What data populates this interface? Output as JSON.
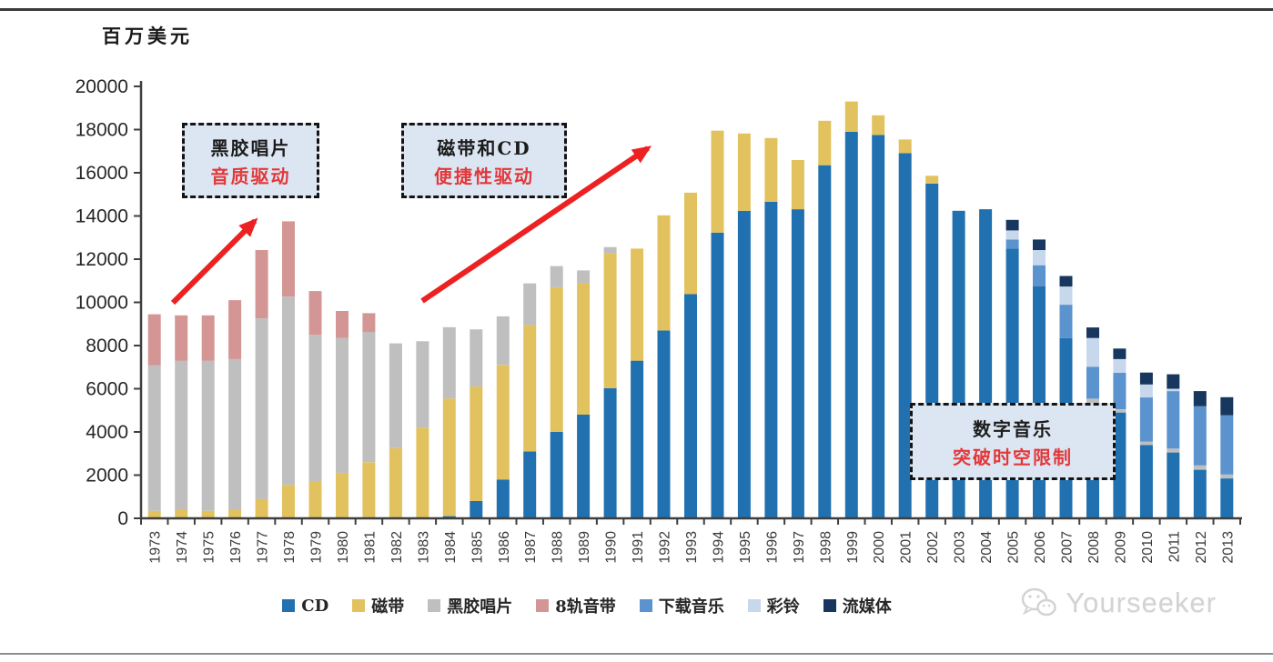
{
  "unit_label": "百万美元",
  "watermark": "Yourseeker",
  "annotations": [
    {
      "title": "黑胶唱片",
      "subtitle": "音质驱动"
    },
    {
      "title": "磁带和CD",
      "subtitle": "便捷性驱动"
    },
    {
      "title": "数字音乐",
      "subtitle": "突破时空限制"
    }
  ],
  "colors": {
    "cd": "#2171b0",
    "cassette": "#e2c25e",
    "vinyl": "#bfbfbf",
    "eight_track": "#d49694",
    "download": "#5b93ce",
    "ringtone": "#c7d7ec",
    "streaming": "#17375e",
    "arrow_red": "#ec2222",
    "annotation_bg": "#dce6f2",
    "axis": "#3f3f3f"
  },
  "chart_data": {
    "type": "bar",
    "stacked": true,
    "title": "",
    "xlabel": "",
    "ylabel": "百万美元",
    "ylim": [
      0,
      20000
    ],
    "ytick_interval": 2000,
    "ytick_labels": [
      "0",
      "2000",
      "4000",
      "6000",
      "8000",
      "10000",
      "12000",
      "14000",
      "16000",
      "18000",
      "20000"
    ],
    "grid": false,
    "legend_position": "bottom",
    "categories": [
      1973,
      1974,
      1975,
      1976,
      1977,
      1978,
      1979,
      1980,
      1981,
      1982,
      1983,
      1984,
      1985,
      1986,
      1987,
      1988,
      1989,
      1990,
      1991,
      1992,
      1993,
      1994,
      1995,
      1996,
      1997,
      1998,
      1999,
      2000,
      2001,
      2002,
      2003,
      2004,
      2005,
      2006,
      2007,
      2008,
      2009,
      2010,
      2011,
      2012,
      2013
    ],
    "series": [
      {
        "name": "CD",
        "color": "#2171b0",
        "values": [
          0,
          0,
          0,
          0,
          0,
          0,
          0,
          0,
          0,
          0,
          0,
          100,
          800,
          1800,
          3100,
          4000,
          4800,
          6030,
          7300,
          8700,
          10380,
          13230,
          14240,
          14660,
          14310,
          16350,
          17900,
          17750,
          16910,
          15500,
          14240,
          14310,
          12490,
          10740,
          8350,
          5330,
          4900,
          3400,
          3050,
          2250,
          1850
        ]
      },
      {
        "name": "磁带",
        "color": "#e2c25e",
        "values": [
          350,
          400,
          350,
          400,
          900,
          1550,
          1700,
          2100,
          2600,
          3250,
          4200,
          5450,
          5300,
          5300,
          5850,
          6700,
          6100,
          6250,
          5190,
          5330,
          4700,
          4720,
          3580,
          2950,
          2280,
          2060,
          1400,
          910,
          630,
          360,
          0,
          0,
          0,
          0,
          0,
          0,
          0,
          0,
          0,
          0,
          0
        ]
      },
      {
        "name": "黑胶唱片",
        "color": "#bfbfbf",
        "values": [
          6740,
          6900,
          6950,
          6970,
          8360,
          8720,
          6790,
          6250,
          6030,
          4850,
          4000,
          3300,
          2650,
          2250,
          1930,
          980,
          580,
          280,
          0,
          0,
          0,
          0,
          0,
          0,
          0,
          0,
          0,
          0,
          0,
          0,
          0,
          0,
          0,
          0,
          0,
          210,
          150,
          150,
          180,
          200,
          180
        ]
      },
      {
        "name": "8轨音带",
        "color": "#d49694",
        "values": [
          2360,
          2100,
          2100,
          2730,
          3160,
          3480,
          2030,
          1250,
          870,
          0,
          0,
          0,
          0,
          0,
          0,
          0,
          0,
          0,
          0,
          0,
          0,
          0,
          0,
          0,
          0,
          0,
          0,
          0,
          0,
          0,
          0,
          0,
          0,
          0,
          0,
          0,
          0,
          0,
          0,
          0,
          0
        ]
      },
      {
        "name": "下载音乐",
        "color": "#5b93ce",
        "values": [
          0,
          0,
          0,
          0,
          0,
          0,
          0,
          0,
          0,
          0,
          0,
          0,
          0,
          0,
          0,
          0,
          0,
          0,
          0,
          0,
          0,
          0,
          0,
          0,
          0,
          0,
          0,
          0,
          0,
          0,
          0,
          0,
          420,
          980,
          1540,
          1480,
          1690,
          2050,
          2660,
          2740,
          2740
        ]
      },
      {
        "name": "彩铃",
        "color": "#c7d7ec",
        "values": [
          0,
          0,
          0,
          0,
          0,
          0,
          0,
          0,
          0,
          0,
          0,
          0,
          0,
          0,
          0,
          0,
          0,
          0,
          0,
          0,
          0,
          0,
          0,
          0,
          0,
          0,
          0,
          0,
          0,
          0,
          0,
          0,
          420,
          700,
          840,
          1330,
          630,
          600,
          110,
          0,
          0
        ]
      },
      {
        "name": "流媒体",
        "color": "#17375e",
        "values": [
          0,
          0,
          0,
          0,
          0,
          0,
          0,
          0,
          0,
          0,
          0,
          0,
          0,
          0,
          0,
          0,
          0,
          0,
          0,
          0,
          0,
          0,
          0,
          0,
          0,
          0,
          0,
          0,
          0,
          0,
          0,
          0,
          490,
          490,
          490,
          490,
          490,
          550,
          670,
          700,
          840
        ]
      }
    ]
  }
}
